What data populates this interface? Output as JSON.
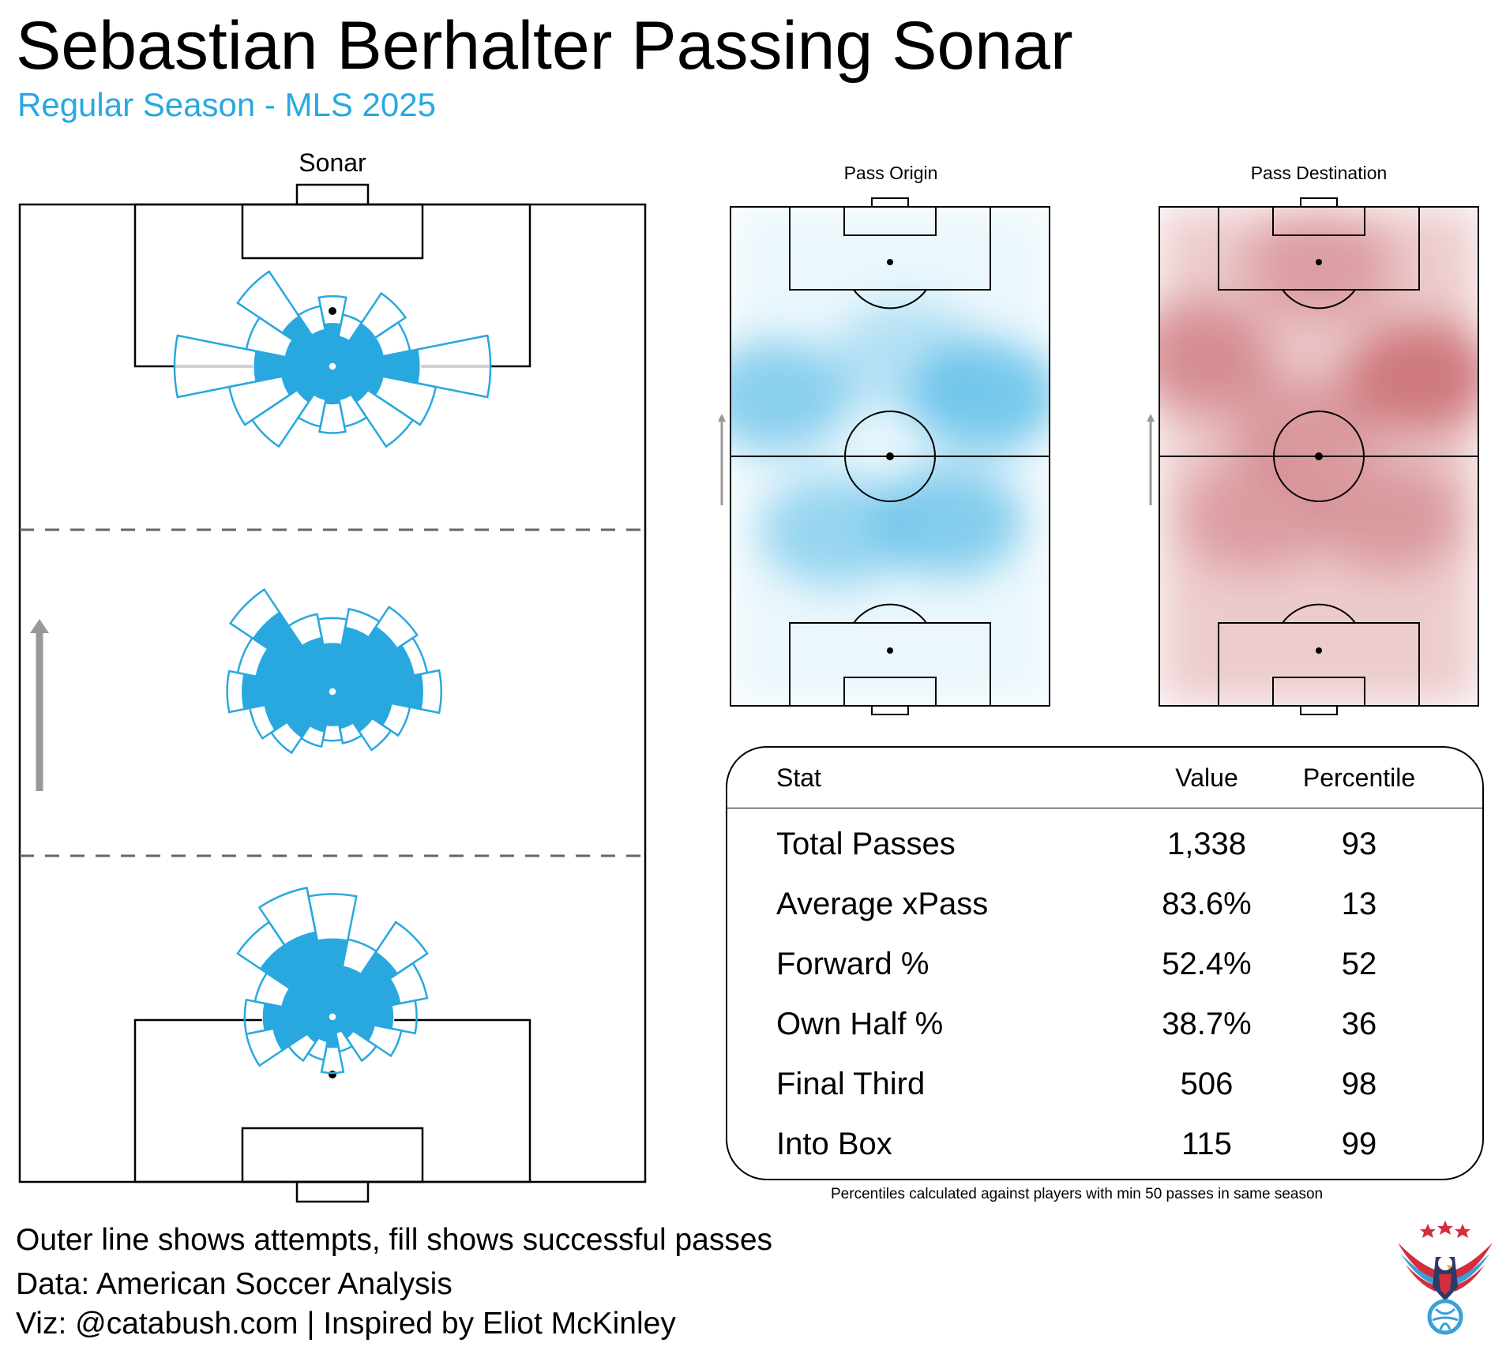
{
  "header": {
    "title": "Sebastian Berhalter Passing Sonar",
    "subtitle": "Regular Season - MLS 2025"
  },
  "colors": {
    "accent": "#29a8e0",
    "sonar_fill": "#29a8e0",
    "origin_heat": "#5bbde8",
    "destination_heat": "#c96a70",
    "arrow": "#999999"
  },
  "chart_data": [
    {
      "type": "rose",
      "title": "Sonar",
      "unit": "pass attempts (outer line) and successful passes (fill) by direction, per zone",
      "direction_bins_deg": [
        0,
        22.5,
        45,
        67.5,
        90,
        112.5,
        135,
        157.5,
        180,
        202.5,
        225,
        247.5,
        270,
        292.5,
        315,
        337.5
      ],
      "zones": [
        {
          "name": "Final third",
          "attempts": [
            40,
            30,
            50,
            45,
            90,
            60,
            55,
            35,
            38,
            35,
            55,
            60,
            90,
            50,
            65,
            35
          ],
          "successful": [
            25,
            18,
            30,
            30,
            50,
            30,
            25,
            20,
            22,
            20,
            25,
            30,
            45,
            28,
            35,
            22
          ]
        },
        {
          "name": "Middle third",
          "attempts": [
            42,
            48,
            58,
            55,
            62,
            45,
            40,
            30,
            28,
            32,
            42,
            48,
            60,
            55,
            70,
            45
          ],
          "successful": [
            28,
            38,
            45,
            48,
            52,
            35,
            28,
            22,
            20,
            24,
            32,
            40,
            52,
            45,
            55,
            32
          ]
        },
        {
          "name": "Defensive third",
          "attempts": [
            70,
            45,
            65,
            55,
            48,
            40,
            30,
            20,
            32,
            25,
            30,
            50,
            50,
            45,
            65,
            75
          ],
          "successful": [
            45,
            30,
            45,
            40,
            35,
            25,
            15,
            10,
            18,
            15,
            18,
            35,
            40,
            30,
            50,
            50
          ]
        }
      ]
    },
    {
      "type": "heatmap",
      "title": "Pass Origin",
      "hotspots": [
        {
          "x": 0.14,
          "y": 0.38,
          "w": 0.8
        },
        {
          "x": 0.55,
          "y": 0.3,
          "w": 0.45
        },
        {
          "x": 0.8,
          "y": 0.38,
          "w": 0.95
        },
        {
          "x": 0.33,
          "y": 0.65,
          "w": 0.7
        },
        {
          "x": 0.68,
          "y": 0.63,
          "w": 0.85
        }
      ]
    },
    {
      "type": "heatmap",
      "title": "Pass Destination",
      "hotspots": [
        {
          "x": 0.12,
          "y": 0.3,
          "w": 0.75
        },
        {
          "x": 0.5,
          "y": 0.12,
          "w": 0.55
        },
        {
          "x": 0.82,
          "y": 0.34,
          "w": 1.0
        },
        {
          "x": 0.45,
          "y": 0.45,
          "w": 0.6
        },
        {
          "x": 0.3,
          "y": 0.62,
          "w": 0.55
        },
        {
          "x": 0.72,
          "y": 0.62,
          "w": 0.6
        }
      ]
    },
    {
      "type": "table",
      "columns": [
        "Stat",
        "Value",
        "Percentile"
      ],
      "rows": [
        {
          "stat": "Total Passes",
          "value": "1,338",
          "percentile": "93"
        },
        {
          "stat": "Average xPass",
          "value": "83.6%",
          "percentile": "13"
        },
        {
          "stat": "Forward %",
          "value": "52.4%",
          "percentile": "52"
        },
        {
          "stat": "Own Half %",
          "value": "38.7%",
          "percentile": "36"
        },
        {
          "stat": "Final Third",
          "value": "506",
          "percentile": "98"
        },
        {
          "stat": "Into Box",
          "value": "115",
          "percentile": "99"
        }
      ]
    }
  ],
  "stats_note": "Percentiles calculated against players with min 50 passes in same season",
  "footer": {
    "line1": "Outer line shows attempts, fill shows successful passes",
    "line2": "Data: American Soccer Analysis",
    "line3": "Viz: @catabush.com | Inspired by Eliot McKinley"
  },
  "logo": {
    "icon": "eagle-soccer-ball-logo"
  }
}
